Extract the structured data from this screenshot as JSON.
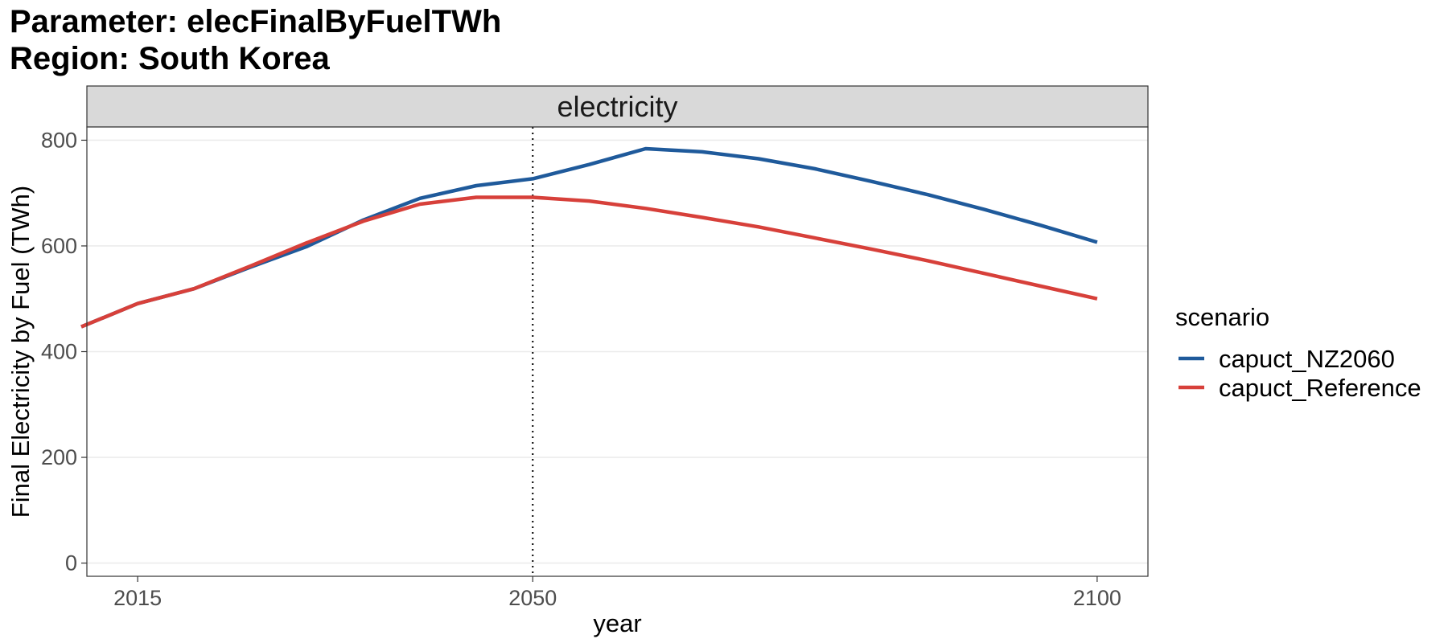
{
  "title": {
    "line1": "Parameter: elecFinalByFuelTWh",
    "line2": "Region: South Korea"
  },
  "chart_data": {
    "type": "line",
    "panel_label": "electricity",
    "xlabel": "year",
    "ylabel": "Final Electricity by Fuel (TWh)",
    "xlim": [
      2010.5,
      2104.5
    ],
    "ylim": [
      -25,
      825
    ],
    "x_ticks": [
      2015,
      2050,
      2100
    ],
    "y_ticks": [
      0,
      200,
      400,
      600,
      800
    ],
    "vline": {
      "x": 2050,
      "style": "dotted"
    },
    "legend_title": "scenario",
    "legend_position": "right",
    "series": [
      {
        "name": "capuct_NZ2060",
        "color": "#1f5a9b",
        "x": [
          2010,
          2015,
          2020,
          2025,
          2030,
          2035,
          2040,
          2045,
          2050,
          2055,
          2060,
          2065,
          2070,
          2075,
          2080,
          2085,
          2090,
          2095,
          2100
        ],
        "y": [
          447,
          491,
          519,
          560,
          599,
          649,
          690,
          714,
          727,
          754,
          784,
          778,
          765,
          746,
          722,
          697,
          669,
          639,
          607
        ]
      },
      {
        "name": "capuct_Reference",
        "color": "#d7403a",
        "x": [
          2010,
          2015,
          2020,
          2025,
          2030,
          2035,
          2040,
          2045,
          2050,
          2055,
          2060,
          2065,
          2070,
          2075,
          2080,
          2085,
          2090,
          2095,
          2100
        ],
        "y": [
          447,
          491,
          519,
          562,
          606,
          647,
          679,
          692,
          692,
          685,
          671,
          654,
          636,
          615,
          594,
          572,
          548,
          524,
          500
        ]
      }
    ]
  }
}
